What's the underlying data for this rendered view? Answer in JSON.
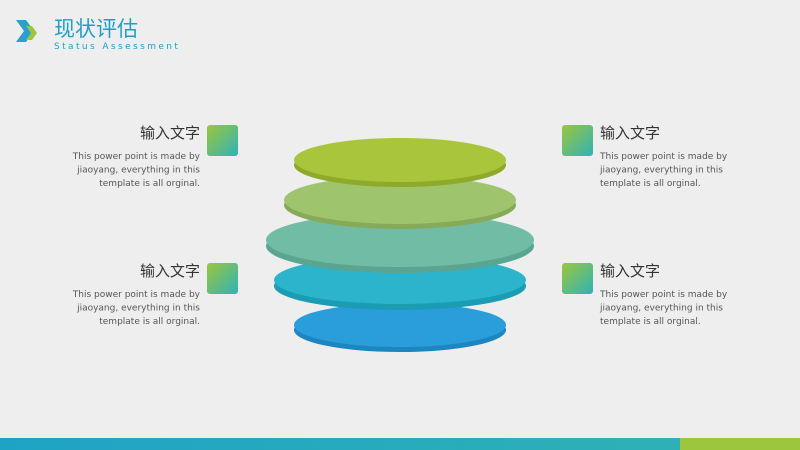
{
  "header": {
    "title": "现状评估",
    "subtitle": "Status Assessment"
  },
  "items": [
    {
      "title": "输入文字",
      "lines": [
        "This power point is made by",
        "jiaoyang, everything in this",
        "template is all orginal."
      ]
    },
    {
      "title": "输入文字",
      "lines": [
        "This power point is made by",
        "jiaoyang, everything in this",
        "template is all orginal."
      ]
    },
    {
      "title": "输入文字",
      "lines": [
        "This power point is made by",
        "jiaoyang, everything in this",
        "template is all orginal."
      ]
    },
    {
      "title": "输入文字",
      "lines": [
        "This power point is made by",
        "jiaoyang, everything in this",
        "template is all orginal."
      ]
    }
  ]
}
